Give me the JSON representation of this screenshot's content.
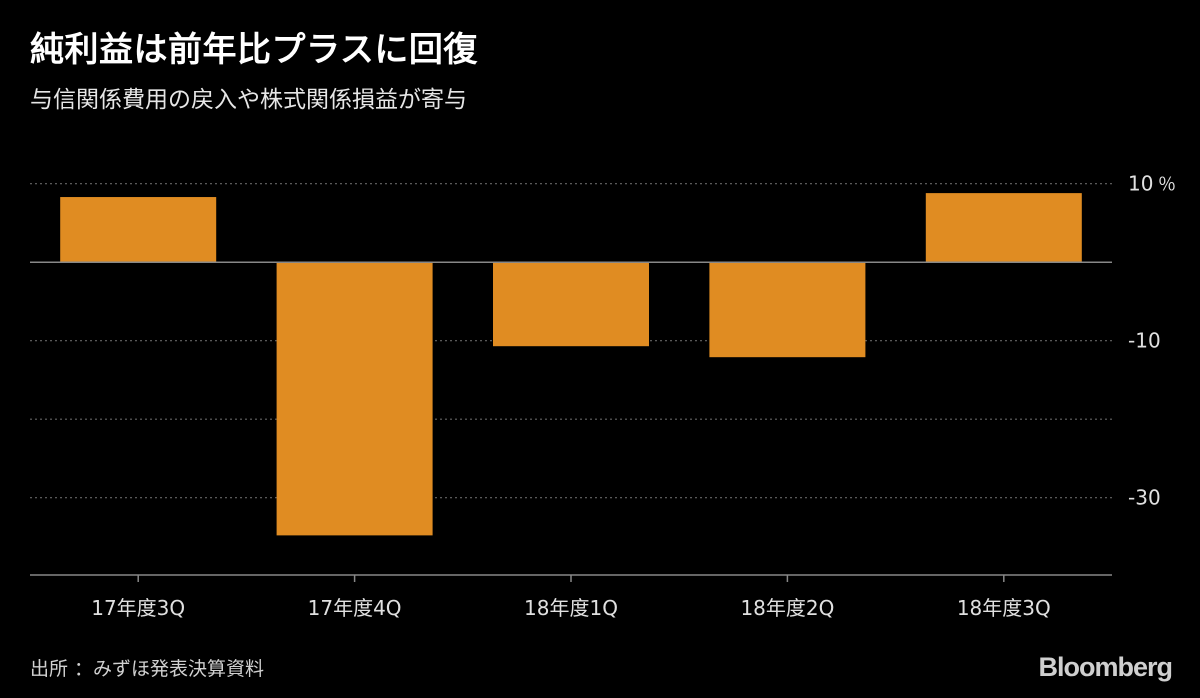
{
  "chart_data": {
    "type": "bar",
    "title": "純利益は前年比プラスに回復",
    "subtitle": "与信関係費用の戻入や株式関係損益が寄与",
    "categories": [
      "17年度3Q",
      "17年度4Q",
      "18年度1Q",
      "18年度2Q",
      "18年度3Q"
    ],
    "values": [
      8.3,
      -34.8,
      -10.7,
      -12.1,
      8.8
    ],
    "yunit": "％",
    "yticks": [
      {
        "value": 10,
        "label": "10"
      },
      {
        "value": -10,
        "label": "-10"
      },
      {
        "value": -30,
        "label": "-30"
      }
    ],
    "gridlines": [
      10,
      -10,
      -20,
      -30
    ],
    "ylim": [
      -40,
      12
    ],
    "grid": true,
    "legend": "none",
    "bar_color": "#e08c22",
    "axis_color": "#888888",
    "grid_color": "#666666"
  },
  "source": "出所 ：みずほ発表決算資料",
  "brand": "Bloomberg"
}
